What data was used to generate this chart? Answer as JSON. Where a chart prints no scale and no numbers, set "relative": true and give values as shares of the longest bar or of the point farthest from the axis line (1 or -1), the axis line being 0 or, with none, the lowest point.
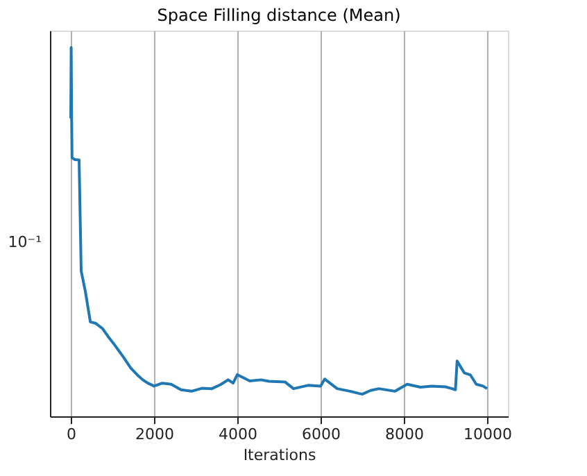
{
  "chart_data": {
    "type": "line",
    "title": "Space Filling distance (Mean)",
    "xlabel": "Iterations",
    "relative": true,
    "annotations": [
      "10⁻¹"
    ],
    "x": [
      0,
      10,
      20,
      30,
      100,
      200,
      250,
      350,
      470,
      600,
      762,
      900,
      1050,
      1250,
      1440,
      1600,
      1730,
      1850,
      2000,
      2200,
      2410,
      2650,
      2900,
      3150,
      3390,
      3600,
      3780,
      3900,
      4000,
      4300,
      4570,
      4760,
      5150,
      5350,
      5700,
      6000,
      6100,
      6400,
      6710,
      7000,
      7200,
      7400,
      7790,
      8080,
      8400,
      8670,
      9000,
      9160,
      9240,
      9280,
      9450,
      9600,
      9740,
      9900,
      10000
    ],
    "series": [
      {
        "color": "#1f77b4",
        "values": [
          0.808,
          1,
          0.82,
          0.701,
          0.696,
          0.695,
          0.394,
          0.339,
          0.256,
          0.252,
          0.238,
          0.216,
          0.194,
          0.163,
          0.131,
          0.112,
          0.099,
          0.09,
          0.082,
          0.09,
          0.087,
          0.072,
          0.068,
          0.076,
          0.075,
          0.086,
          0.099,
          0.09,
          0.113,
          0.096,
          0.099,
          0.095,
          0.093,
          0.075,
          0.084,
          0.082,
          0.101,
          0.075,
          0.068,
          0.06,
          0.07,
          0.075,
          0.068,
          0.087,
          0.079,
          0.082,
          0.08,
          0.075,
          0.072,
          0.15,
          0.118,
          0.112,
          0.087,
          0.082,
          0.075
        ]
      }
    ],
    "xlim": [
      -500,
      10500
    ],
    "xticks": [
      0,
      2000,
      4000,
      6000,
      8000,
      10000
    ],
    "grid": "x",
    "line_style": "solid",
    "marker": "none"
  }
}
